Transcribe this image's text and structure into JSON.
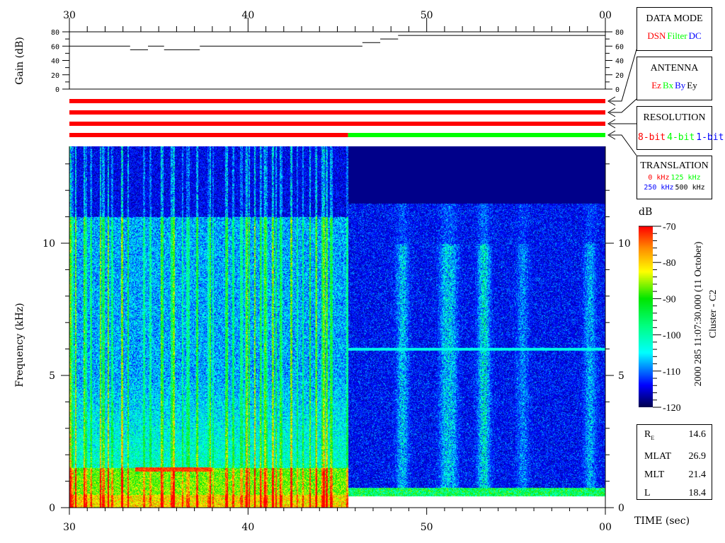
{
  "chart_data": {
    "type": "heatmap",
    "xlabel": "TIME (sec)",
    "ylabel": "Frequency (kHz)",
    "xlim": [
      30,
      60
    ],
    "x_ticks": [
      "30",
      "40",
      "50",
      "00"
    ],
    "ylim": [
      0,
      13.7
    ],
    "y_ticks": [
      "0",
      "5",
      "10"
    ],
    "colorbar": {
      "label": "dB",
      "range": [
        -120,
        -70
      ],
      "ticks": [
        "-70",
        "-80",
        "-90",
        "-100",
        "-110",
        "-120"
      ]
    },
    "gain_panel": {
      "ylabel": "Gain (dB)",
      "ylim": [
        0,
        80
      ],
      "y_ticks": [
        "0",
        "20",
        "40",
        "60",
        "80"
      ],
      "steps": [
        {
          "from": 30,
          "to": 33.4,
          "gain": 60
        },
        {
          "from": 33.4,
          "to": 34.4,
          "gain": 55
        },
        {
          "from": 34.4,
          "to": 35.3,
          "gain": 60
        },
        {
          "from": 35.3,
          "to": 37.3,
          "gain": 55
        },
        {
          "from": 37.3,
          "to": 46.4,
          "gain": 60
        },
        {
          "from": 46.4,
          "to": 47.4,
          "gain": 65
        },
        {
          "from": 47.4,
          "to": 48.4,
          "gain": 70
        },
        {
          "from": 48.4,
          "to": 60,
          "gain": 75
        }
      ]
    },
    "status_bars": [
      {
        "name": "DATA MODE",
        "segments": [
          {
            "from": 30,
            "to": 60,
            "color": "#ff0000"
          }
        ]
      },
      {
        "name": "ANTENNA",
        "segments": [
          {
            "from": 30,
            "to": 60,
            "color": "#ff0000"
          }
        ]
      },
      {
        "name": "RESOLUTION",
        "segments": [
          {
            "from": 30,
            "to": 60,
            "color": "#ff0000"
          }
        ]
      },
      {
        "name": "TRANSLATION",
        "segments": [
          {
            "from": 30,
            "to": 45.6,
            "color": "#ff0000"
          },
          {
            "from": 45.6,
            "to": 60,
            "color": "#00ff00"
          }
        ]
      }
    ],
    "features": {
      "resolution_change_at": 45.6,
      "line_after_change_khz": 6.0
    }
  },
  "legend": {
    "data_mode": {
      "title": "DATA MODE",
      "items": [
        {
          "text": "DSN",
          "color": "#ff0000"
        },
        {
          "text": "Filter",
          "color": "#00ff00"
        },
        {
          "text": "DC",
          "color": "#0000ff"
        }
      ]
    },
    "antenna": {
      "title": "ANTENNA",
      "items": [
        {
          "text": "Ez",
          "color": "#ff0000"
        },
        {
          "text": "Bx",
          "color": "#00ff00"
        },
        {
          "text": "By",
          "color": "#0000ff"
        },
        {
          "text": "Ey",
          "color": "#000000"
        }
      ]
    },
    "resolution": {
      "title": "RESOLUTION",
      "items": [
        {
          "text": "8-bit",
          "color": "#ff0000"
        },
        {
          "text": "4-bit",
          "color": "#00ff00"
        },
        {
          "text": "1-bit",
          "color": "#0000ff"
        }
      ]
    },
    "translation": {
      "title": "TRANSLATION",
      "items": [
        {
          "text": "0 kHz",
          "color": "#ff0000"
        },
        {
          "text": "125 kHz",
          "color": "#00ff00"
        },
        {
          "text": "250 kHz",
          "color": "#0000ff"
        },
        {
          "text": "500 kHz",
          "color": "#000000"
        }
      ]
    }
  },
  "side_title": "2000 285 11:07:30.000 (11 October)",
  "spacecraft": "Cluster - C2",
  "orbit": [
    {
      "label": "R",
      "sub": "E",
      "value": "14.6"
    },
    {
      "label": "MLAT",
      "value": "26.9"
    },
    {
      "label": "MLT",
      "value": "21.4"
    },
    {
      "label": "L",
      "value": "18.4"
    }
  ]
}
